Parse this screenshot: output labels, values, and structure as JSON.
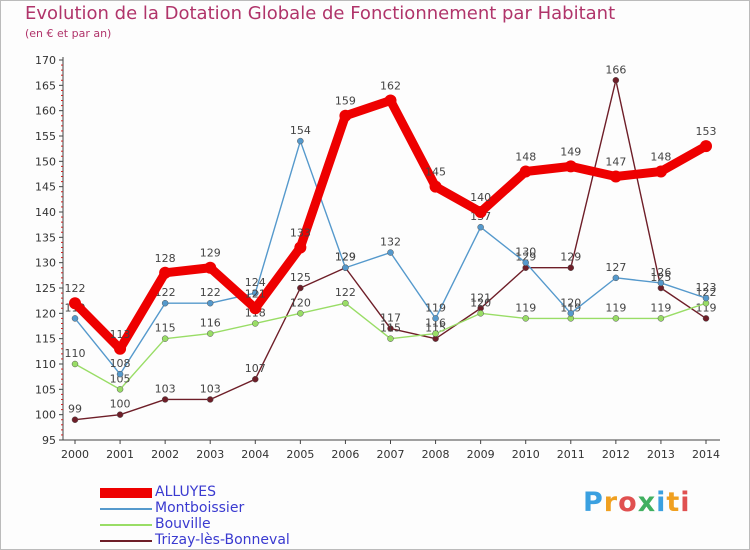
{
  "title": "Evolution de la Dotation Globale de Fonctionnement par Habitant",
  "subtitle": "(en € et par an)",
  "logo": {
    "text": "Proxiti",
    "letter_colors": [
      "#3aa0e0",
      "#f0a020",
      "#e05050",
      "#40b060",
      "#3aa0e0",
      "#f0a020",
      "#e05050"
    ]
  },
  "chart_data": {
    "type": "line",
    "title": "Evolution de la Dotation Globale de Fonctionnement par Habitant",
    "subtitle": "(en € et par an)",
    "xlabel": "",
    "ylabel": "",
    "ylim": [
      95,
      170
    ],
    "yticks": [
      95,
      100,
      105,
      110,
      115,
      120,
      125,
      130,
      135,
      140,
      145,
      150,
      155,
      160,
      165,
      170
    ],
    "grid": false,
    "legend_position": "bottom-left",
    "x": [
      "2000",
      "2001",
      "2002",
      "2003",
      "2004",
      "2005",
      "2006",
      "2007",
      "2008",
      "2009",
      "2010",
      "2011",
      "2012",
      "2013",
      "2014"
    ],
    "series": [
      {
        "name": "Trizay-lès-Bonneval",
        "color": "#6e1e28",
        "values": [
          99,
          100,
          103,
          103,
          107,
          125,
          129,
          117,
          115,
          121,
          129,
          129,
          166,
          125,
          119
        ]
      },
      {
        "name": "Bouville",
        "color": "#99dd66",
        "values": [
          110,
          105,
          115,
          116,
          118,
          120,
          122,
          115,
          116,
          120,
          119,
          119,
          119,
          119,
          122
        ]
      },
      {
        "name": "Montboissier",
        "color": "#5599cc",
        "values": [
          119,
          108,
          122,
          122,
          124,
          154,
          129,
          132,
          119,
          137,
          130,
          120,
          127,
          126,
          123
        ]
      },
      {
        "name": "ALLUYES",
        "color": "#ee0000",
        "values": [
          122,
          113,
          128,
          129,
          121,
          133,
          159,
          162,
          145,
          140,
          148,
          149,
          147,
          148,
          153
        ]
      }
    ]
  },
  "legend": [
    {
      "label": "ALLUYES",
      "color": "#ee0000",
      "thickness": 10
    },
    {
      "label": "Montboissier",
      "color": "#5599cc",
      "thickness": 2
    },
    {
      "label": "Bouville",
      "color": "#99dd66",
      "thickness": 2
    },
    {
      "label": "Trizay-lès-Bonneval",
      "color": "#6e1e28",
      "thickness": 2
    }
  ]
}
